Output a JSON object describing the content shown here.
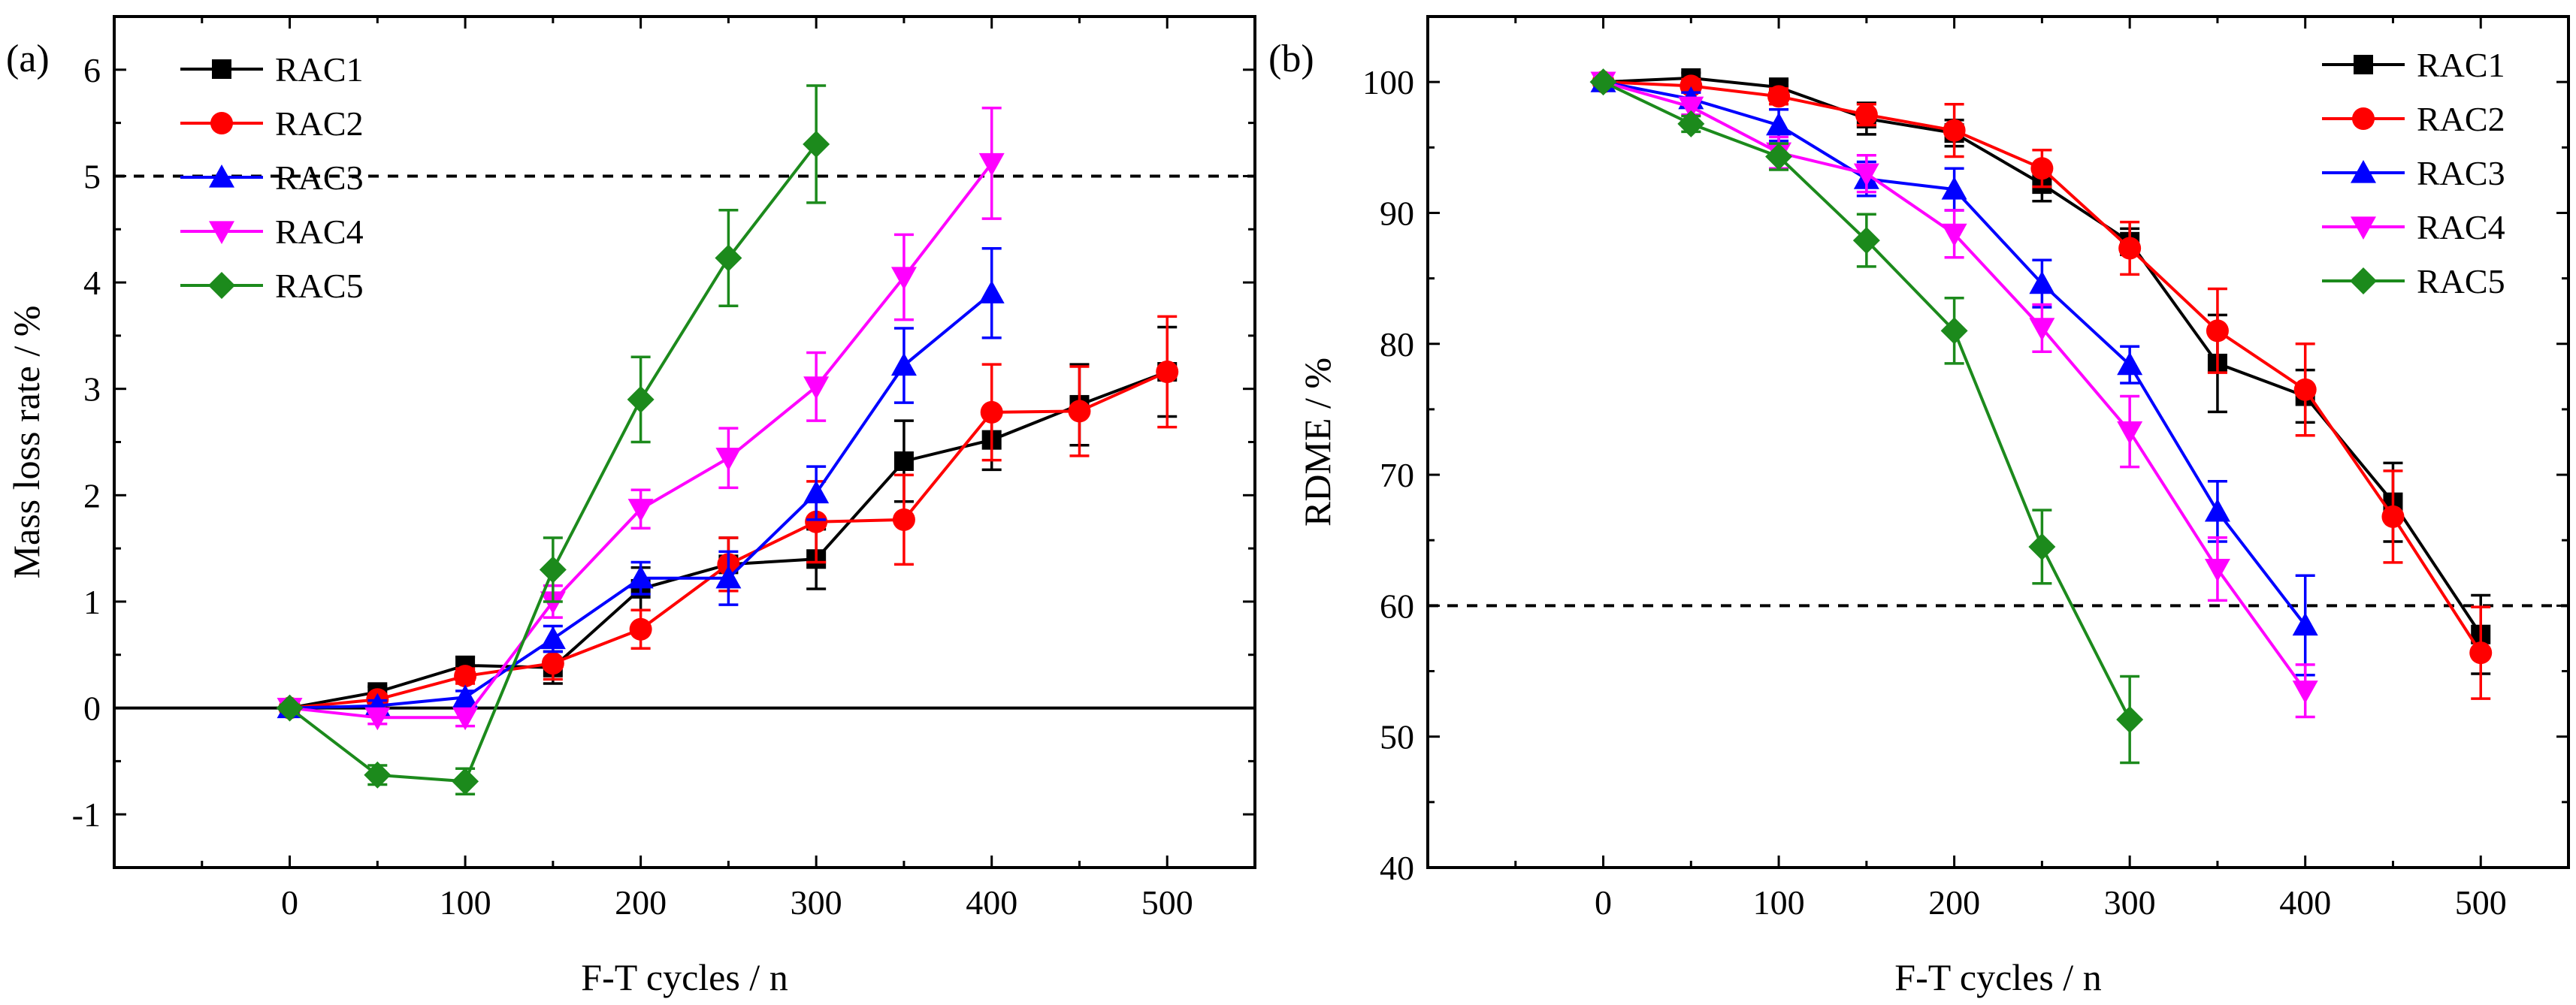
{
  "chart_data": [
    {
      "type": "line",
      "panel_label": "(a)",
      "title": "",
      "xlabel": "F-T cycles / n",
      "ylabel": "Mass loss rate / %",
      "xlim": [
        -100,
        550
      ],
      "ylim": [
        -1.5,
        6.5
      ],
      "xticks": [
        0,
        100,
        200,
        300,
        400,
        500
      ],
      "yticks": [
        -1,
        0,
        1,
        2,
        3,
        4,
        5,
        6
      ],
      "xtick_labels": [
        "0",
        "100",
        "200",
        "300",
        "400",
        "500"
      ],
      "ytick_labels": [
        "-1",
        "0",
        "1",
        "2",
        "3",
        "4",
        "5",
        "6"
      ],
      "reference_lines": [
        {
          "y": 5,
          "style": "dashed"
        },
        {
          "y": 0,
          "style": "solid"
        }
      ],
      "legend_position": "top-left",
      "series": [
        {
          "name": "RAC1",
          "color": "#000000",
          "marker": "square",
          "x": [
            0,
            50,
            100,
            150,
            200,
            250,
            300,
            350,
            400,
            450,
            500
          ],
          "y": [
            0,
            0.15,
            0.4,
            0.38,
            1.12,
            1.35,
            1.4,
            2.32,
            2.52,
            2.85,
            3.16
          ],
          "err": [
            0,
            0.05,
            0.08,
            0.15,
            0.2,
            0.25,
            0.28,
            0.38,
            0.28,
            0.38,
            0.42
          ]
        },
        {
          "name": "RAC2",
          "color": "#ff0000",
          "marker": "circle",
          "x": [
            0,
            50,
            100,
            150,
            200,
            250,
            300,
            350,
            400,
            450,
            500
          ],
          "y": [
            0,
            0.08,
            0.3,
            0.42,
            0.74,
            1.35,
            1.75,
            1.77,
            2.78,
            2.79,
            3.16
          ],
          "err": [
            0,
            0.05,
            0.07,
            0.15,
            0.18,
            0.25,
            0.38,
            0.42,
            0.45,
            0.42,
            0.52
          ]
        },
        {
          "name": "RAC3",
          "color": "#0000ff",
          "marker": "triangle-up",
          "x": [
            0,
            50,
            100,
            150,
            200,
            250,
            300,
            350,
            400
          ],
          "y": [
            0,
            0.02,
            0.1,
            0.65,
            1.22,
            1.22,
            2.02,
            3.22,
            3.9
          ],
          "err": [
            0,
            0.05,
            0.06,
            0.12,
            0.15,
            0.25,
            0.25,
            0.35,
            0.42
          ]
        },
        {
          "name": "RAC4",
          "color": "#ff00ff",
          "marker": "triangle-down",
          "x": [
            0,
            50,
            100,
            150,
            200,
            250,
            300,
            350,
            400
          ],
          "y": [
            0,
            -0.09,
            -0.09,
            1.0,
            1.87,
            2.35,
            3.02,
            4.05,
            5.12
          ],
          "err": [
            0,
            0.06,
            0.08,
            0.15,
            0.18,
            0.28,
            0.32,
            0.4,
            0.52
          ]
        },
        {
          "name": "RAC5",
          "color": "#1c8a1c",
          "marker": "diamond",
          "x": [
            0,
            50,
            100,
            150,
            200,
            250,
            300
          ],
          "y": [
            0,
            -0.63,
            -0.69,
            1.3,
            2.9,
            4.23,
            5.3
          ],
          "err": [
            0,
            0.09,
            0.12,
            0.3,
            0.4,
            0.45,
            0.55
          ]
        }
      ]
    },
    {
      "type": "line",
      "panel_label": "(b)",
      "title": "",
      "xlabel": "F-T cycles / n",
      "ylabel": "RDME / %",
      "xlim": [
        -100,
        550
      ],
      "ylim": [
        40,
        105
      ],
      "xticks": [
        0,
        100,
        200,
        300,
        400,
        500
      ],
      "yticks": [
        40,
        50,
        60,
        70,
        80,
        90,
        100
      ],
      "xtick_labels": [
        "0",
        "100",
        "200",
        "300",
        "400",
        "500"
      ],
      "ytick_labels": [
        "40",
        "50",
        "60",
        "70",
        "80",
        "90",
        "100"
      ],
      "reference_lines": [
        {
          "y": 60,
          "style": "dashed"
        }
      ],
      "legend_position": "top-right",
      "series": [
        {
          "name": "RAC1",
          "color": "#000000",
          "marker": "square",
          "x": [
            0,
            50,
            100,
            150,
            200,
            250,
            300,
            350,
            400,
            450,
            500
          ],
          "y": [
            100,
            100.3,
            99.6,
            97.2,
            96.1,
            92.2,
            87.8,
            78.5,
            76.0,
            67.9,
            57.8
          ],
          "err": [
            0,
            0.4,
            0.5,
            1.2,
            1.0,
            1.3,
            1.0,
            3.7,
            2.0,
            3.0,
            3.0
          ]
        },
        {
          "name": "RAC2",
          "color": "#ff0000",
          "marker": "circle",
          "x": [
            0,
            50,
            100,
            150,
            200,
            250,
            300,
            350,
            400,
            450,
            500
          ],
          "y": [
            100,
            99.7,
            98.9,
            97.5,
            96.3,
            93.4,
            87.3,
            81.0,
            76.5,
            66.8,
            56.4
          ],
          "err": [
            0,
            0.5,
            0.6,
            0.8,
            2.0,
            1.4,
            2.0,
            3.2,
            3.5,
            3.5,
            3.5
          ]
        },
        {
          "name": "RAC3",
          "color": "#0000ff",
          "marker": "triangle-up",
          "x": [
            0,
            50,
            100,
            150,
            200,
            250,
            300,
            350,
            400
          ],
          "y": [
            100,
            98.7,
            96.7,
            92.6,
            91.8,
            84.6,
            78.4,
            67.2,
            58.5
          ],
          "err": [
            0,
            0.5,
            1.2,
            1.3,
            1.6,
            1.8,
            1.4,
            2.3,
            3.8
          ]
        },
        {
          "name": "RAC4",
          "color": "#ff00ff",
          "marker": "triangle-down",
          "x": [
            0,
            50,
            100,
            150,
            200,
            250,
            300,
            350,
            400
          ],
          "y": [
            100,
            98.1,
            94.6,
            93.0,
            88.4,
            81.2,
            73.3,
            62.8,
            53.5
          ],
          "err": [
            0,
            0.6,
            1.2,
            1.4,
            1.8,
            1.8,
            2.7,
            2.4,
            2.0
          ]
        },
        {
          "name": "RAC5",
          "color": "#1c8a1c",
          "marker": "diamond",
          "x": [
            0,
            50,
            100,
            150,
            200,
            250,
            300
          ],
          "y": [
            100,
            96.8,
            94.3,
            87.9,
            81.0,
            64.5,
            51.3
          ],
          "err": [
            0,
            0.6,
            1.0,
            2.0,
            2.5,
            2.8,
            3.3
          ]
        }
      ]
    }
  ]
}
